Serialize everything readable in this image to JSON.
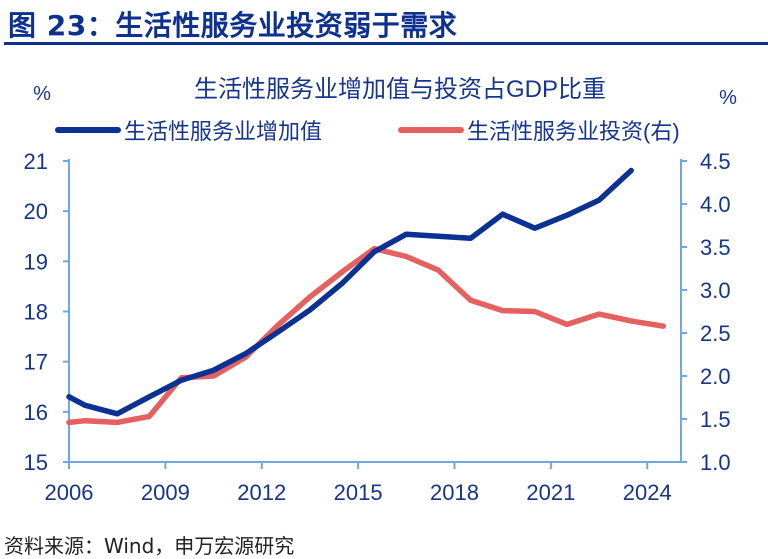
{
  "figure_title": "图 23：生活性服务业投资弱于需求",
  "source": "资料来源：Wind，申万宏源研究",
  "colors": {
    "blue": "#0b3293",
    "red": "#e5615f",
    "axis": "#6fa8dc",
    "text": "#16358f"
  },
  "chart_data": {
    "type": "line",
    "title": "生活性服务业增加值与投资占GDP比重",
    "ylabel_left": "%",
    "ylabel_right": "%",
    "xlim": [
      2006,
      2025.05
    ],
    "xticks": [
      2006,
      2009,
      2012,
      2015,
      2018,
      2021,
      2024
    ],
    "ylim_left": [
      15,
      21
    ],
    "yticks_left": [
      "15",
      "16",
      "17",
      "18",
      "19",
      "20",
      "21"
    ],
    "ylim_right": [
      1.0,
      4.5
    ],
    "yticks_right": [
      "1.0",
      "1.5",
      "2.0",
      "2.5",
      "3.0",
      "3.5",
      "4.0",
      "4.5"
    ],
    "legend_position": "top",
    "series": [
      {
        "name": "生活性服务业增加值",
        "axis": "left",
        "color": "#0b3293",
        "x": [
          2006,
          2006.5,
          2007.5,
          2008.5,
          2009.5,
          2010.5,
          2011.5,
          2012.5,
          2013.5,
          2014.5,
          2015.5,
          2016.5,
          2017.5,
          2018.5,
          2019.5,
          2020.5,
          2021.5,
          2022.5,
          2023.5
        ],
        "values": [
          16.3,
          16.13,
          15.96,
          16.3,
          16.63,
          16.83,
          17.16,
          17.59,
          18.03,
          18.56,
          19.19,
          19.54,
          19.5,
          19.46,
          19.94,
          19.66,
          19.92,
          20.22,
          20.81
        ]
      },
      {
        "name": "生活性服务业投资(右)",
        "axis": "right",
        "color": "#e5615f",
        "x": [
          2006,
          2006.5,
          2007.5,
          2008.5,
          2009.5,
          2010.5,
          2011.5,
          2012.5,
          2013.5,
          2014.5,
          2015.5,
          2016.5,
          2017.5,
          2018.5,
          2019.5,
          2020.5,
          2021.5,
          2022.5,
          2023.5,
          2024.5
        ],
        "values": [
          1.46,
          1.48,
          1.46,
          1.53,
          1.98,
          2.0,
          2.22,
          2.59,
          2.92,
          3.21,
          3.48,
          3.39,
          3.23,
          2.88,
          2.76,
          2.75,
          2.6,
          2.72,
          2.64,
          2.58
        ]
      }
    ]
  }
}
